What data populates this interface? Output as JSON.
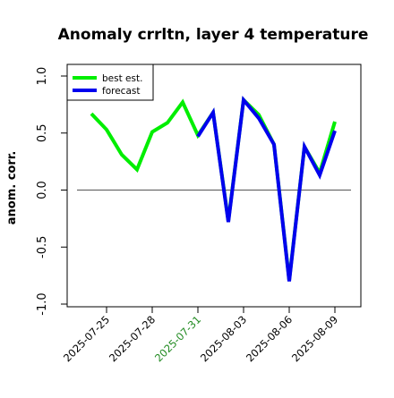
{
  "chart_data": {
    "type": "line",
    "title": "Anomaly crrltn, layer 4 temperature",
    "xlabel": "",
    "ylabel": "anom. corr.",
    "ylim": [
      -1.0,
      1.0
    ],
    "yticks": [
      "-1.0",
      "-0.5",
      "0.0",
      "0.5",
      "1.0"
    ],
    "ytick_values": [
      -1.0,
      -0.5,
      0.0,
      0.5,
      1.0
    ],
    "xticks": [
      "2025-07-25",
      "2025-07-28",
      "2025-07-31",
      "2025-08-03",
      "2025-08-06",
      "2025-08-09"
    ],
    "xtick_highlight": "2025-07-31",
    "highlight_color": "#228B22",
    "reference_line_y": 0.0,
    "x": [
      "2025-07-24",
      "2025-07-25",
      "2025-07-26",
      "2025-07-27",
      "2025-07-28",
      "2025-07-29",
      "2025-07-30",
      "2025-07-31",
      "2025-08-01",
      "2025-08-02",
      "2025-08-03",
      "2025-08-04",
      "2025-08-05",
      "2025-08-06",
      "2025-08-07",
      "2025-08-08",
      "2025-08-09"
    ],
    "series": [
      {
        "name": "best est.",
        "color": "#00ee00",
        "values": [
          0.67,
          0.53,
          0.31,
          0.18,
          0.51,
          0.59,
          0.77,
          0.48,
          0.68,
          -0.27,
          0.79,
          0.66,
          0.4,
          -0.79,
          0.38,
          0.15,
          0.6
        ]
      },
      {
        "name": "forecast",
        "color": "#0000ee",
        "values": [
          null,
          null,
          null,
          null,
          null,
          null,
          null,
          0.47,
          0.68,
          -0.28,
          0.79,
          0.63,
          0.4,
          -0.8,
          0.38,
          0.13,
          0.52
        ]
      }
    ],
    "legend_position": "top-left",
    "grid": false
  }
}
